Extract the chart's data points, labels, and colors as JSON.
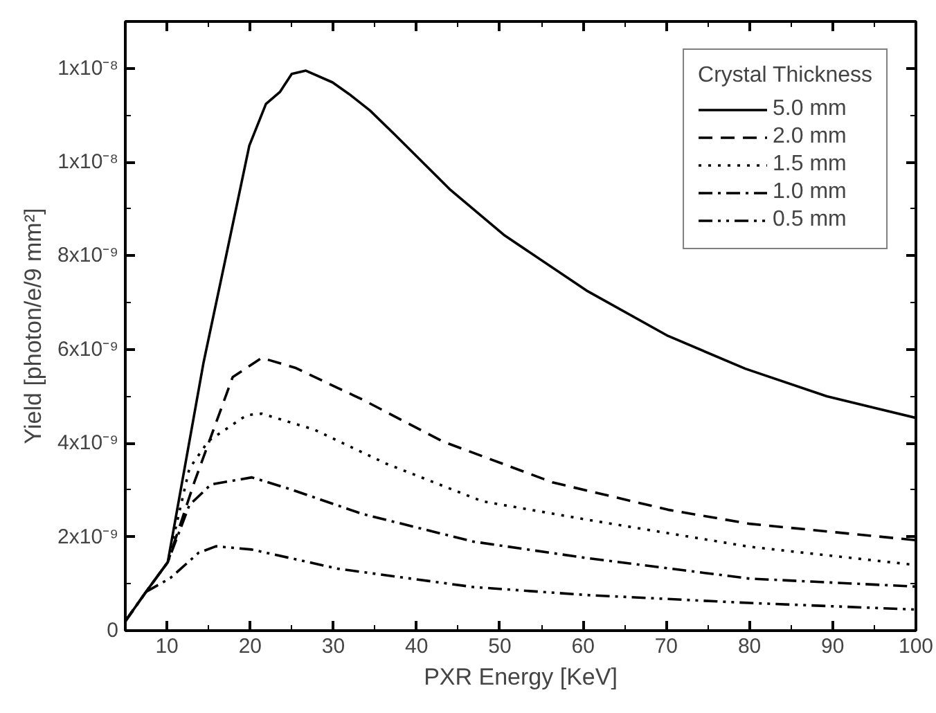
{
  "chart_data": {
    "type": "line",
    "xlabel": "PXR Energy [KeV]",
    "ylabel": "Yield [photon/e/9 mm²]",
    "legend_title": "Crystal Thickness",
    "legend": "top right",
    "grid": false,
    "marker": "none",
    "xlim": [
      5,
      100
    ],
    "xticks": [
      10,
      20,
      30,
      40,
      50,
      60,
      70,
      80,
      90,
      100
    ],
    "ylim": [
      0,
      1.3e-08
    ],
    "yticks": [
      0,
      {
        "value": 2e-09,
        "label": "2x10⁻⁹"
      },
      {
        "value": 4e-09,
        "label": "4x10⁻⁹"
      },
      {
        "value": 6e-09,
        "label": "6x10⁻⁹"
      },
      {
        "value": 8e-09,
        "label": "8x10⁻⁹"
      },
      {
        "value": 1e-08,
        "label": "1x10⁻⁸"
      },
      {
        "value": 1.2e-08,
        "label": "1x10⁻⁸"
      }
    ],
    "series": [
      {
        "name": "5.0 mm",
        "color": "#000000",
        "line_style": "solid",
        "x": [
          5,
          7.5,
          10.1,
          14.4,
          17,
          19.9,
          21.9,
          23.6,
          25,
          26.7,
          29.9,
          31.9,
          34.4,
          37.3,
          44.1,
          50.6,
          60.4,
          70.2,
          79.5,
          89.3,
          100
        ],
        "values": [
          2e-10,
          8.3e-10,
          1.46e-09,
          5.72e-09,
          7.9e-09,
          1.035e-08,
          1.124e-08,
          1.15e-08,
          1.188e-08,
          1.195e-08,
          1.17e-08,
          1.145e-08,
          1.11e-08,
          1.06e-08,
          9.4e-09,
          8.43e-09,
          7.26e-09,
          6.29e-09,
          5.59e-09,
          5e-09,
          4.54e-09
        ]
      },
      {
        "name": "2.0 mm",
        "color": "#000000",
        "line_style": "dashed",
        "x": [
          5,
          7.5,
          10.1,
          13.3,
          17.9,
          21.4,
          25.4,
          33.5,
          43.1,
          56.4,
          70.2,
          80,
          100
        ],
        "values": [
          2e-10,
          8.3e-10,
          1.46e-09,
          3.17e-09,
          5.41e-09,
          5.82e-09,
          5.61e-09,
          4.93e-09,
          4.04e-09,
          3.16e-09,
          2.58e-09,
          2.28e-09,
          1.93e-09
        ]
      },
      {
        "name": "1.5 mm",
        "color": "#000000",
        "line_style": "dotted",
        "x": [
          5,
          7.5,
          10.1,
          12.7,
          15,
          19.6,
          21.4,
          27.7,
          36.4,
          47.9,
          60.4,
          80,
          100
        ],
        "values": [
          2e-10,
          8.3e-10,
          1.46e-09,
          3.46e-09,
          4.05e-09,
          4.6e-09,
          4.63e-09,
          4.29e-09,
          3.56e-09,
          2.76e-09,
          2.37e-09,
          1.79e-09,
          1.4e-09
        ]
      },
      {
        "name": "1.0 mm",
        "color": "#000000",
        "line_style": "dashdot",
        "x": [
          5,
          7.5,
          10.1,
          12.7,
          15.3,
          20.2,
          24.8,
          33.5,
          46.8,
          60.4,
          80,
          100
        ],
        "values": [
          2e-10,
          8.3e-10,
          1.46e-09,
          2.68e-09,
          3.12e-09,
          3.27e-09,
          3.02e-09,
          2.49e-09,
          1.9e-09,
          1.55e-09,
          1.11e-09,
          9.4e-10
        ]
      },
      {
        "name": "0.5 mm",
        "color": "#000000",
        "line_style": "dashdotdot",
        "x": [
          5,
          7.5,
          10.4,
          13.8,
          15.9,
          20.2,
          30.6,
          46.8,
          60.4,
          80,
          100
        ],
        "values": [
          2e-10,
          8.3e-10,
          1.12e-09,
          1.66e-09,
          1.8e-09,
          1.73e-09,
          1.32e-09,
          9.3e-10,
          7.6e-10,
          5.9e-10,
          4.5e-10
        ]
      }
    ]
  }
}
